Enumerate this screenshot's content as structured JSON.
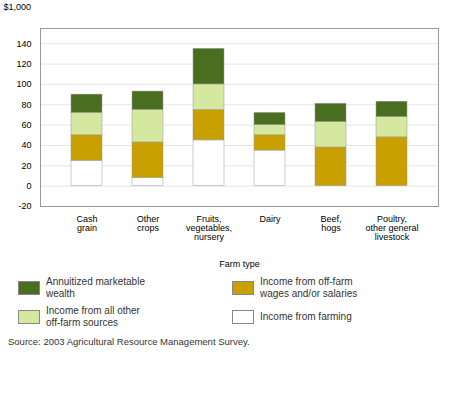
{
  "chart_data": {
    "type": "bar",
    "stacked": true,
    "categories": [
      "Cash\ngrain",
      "Other\ncrops",
      "Fruits,\nvegetables,\nnursery",
      "Dairy",
      "Beef,\nhogs",
      "Poultry,\nother general\nlivestock"
    ],
    "series": [
      {
        "name": "Income from farming",
        "color": "#ffffff",
        "values": [
          25,
          8,
          45,
          35,
          0,
          0
        ]
      },
      {
        "name": "Income from off-farm\nwages and/or salaries",
        "color": "#c8a000",
        "values": [
          25,
          35,
          30,
          15,
          38,
          48
        ]
      },
      {
        "name": "Income from all other\noff-farm sources",
        "color": "#d4e8a0",
        "values": [
          22,
          32,
          25,
          10,
          25,
          20
        ]
      },
      {
        "name": "Annuitized marketable\nwealth",
        "color": "#4a6e20",
        "values": [
          18,
          18,
          35,
          12,
          18,
          15
        ]
      }
    ],
    "ylim": [
      -20,
      155
    ],
    "yticks": [
      -20,
      0,
      20,
      40,
      60,
      80,
      100,
      120,
      140
    ],
    "ylabel": "$1,000",
    "xlabel": "Farm type",
    "grid": true,
    "legend": "bottom",
    "caption": "Source: 2003 Agricultural Resource Management Survey."
  }
}
